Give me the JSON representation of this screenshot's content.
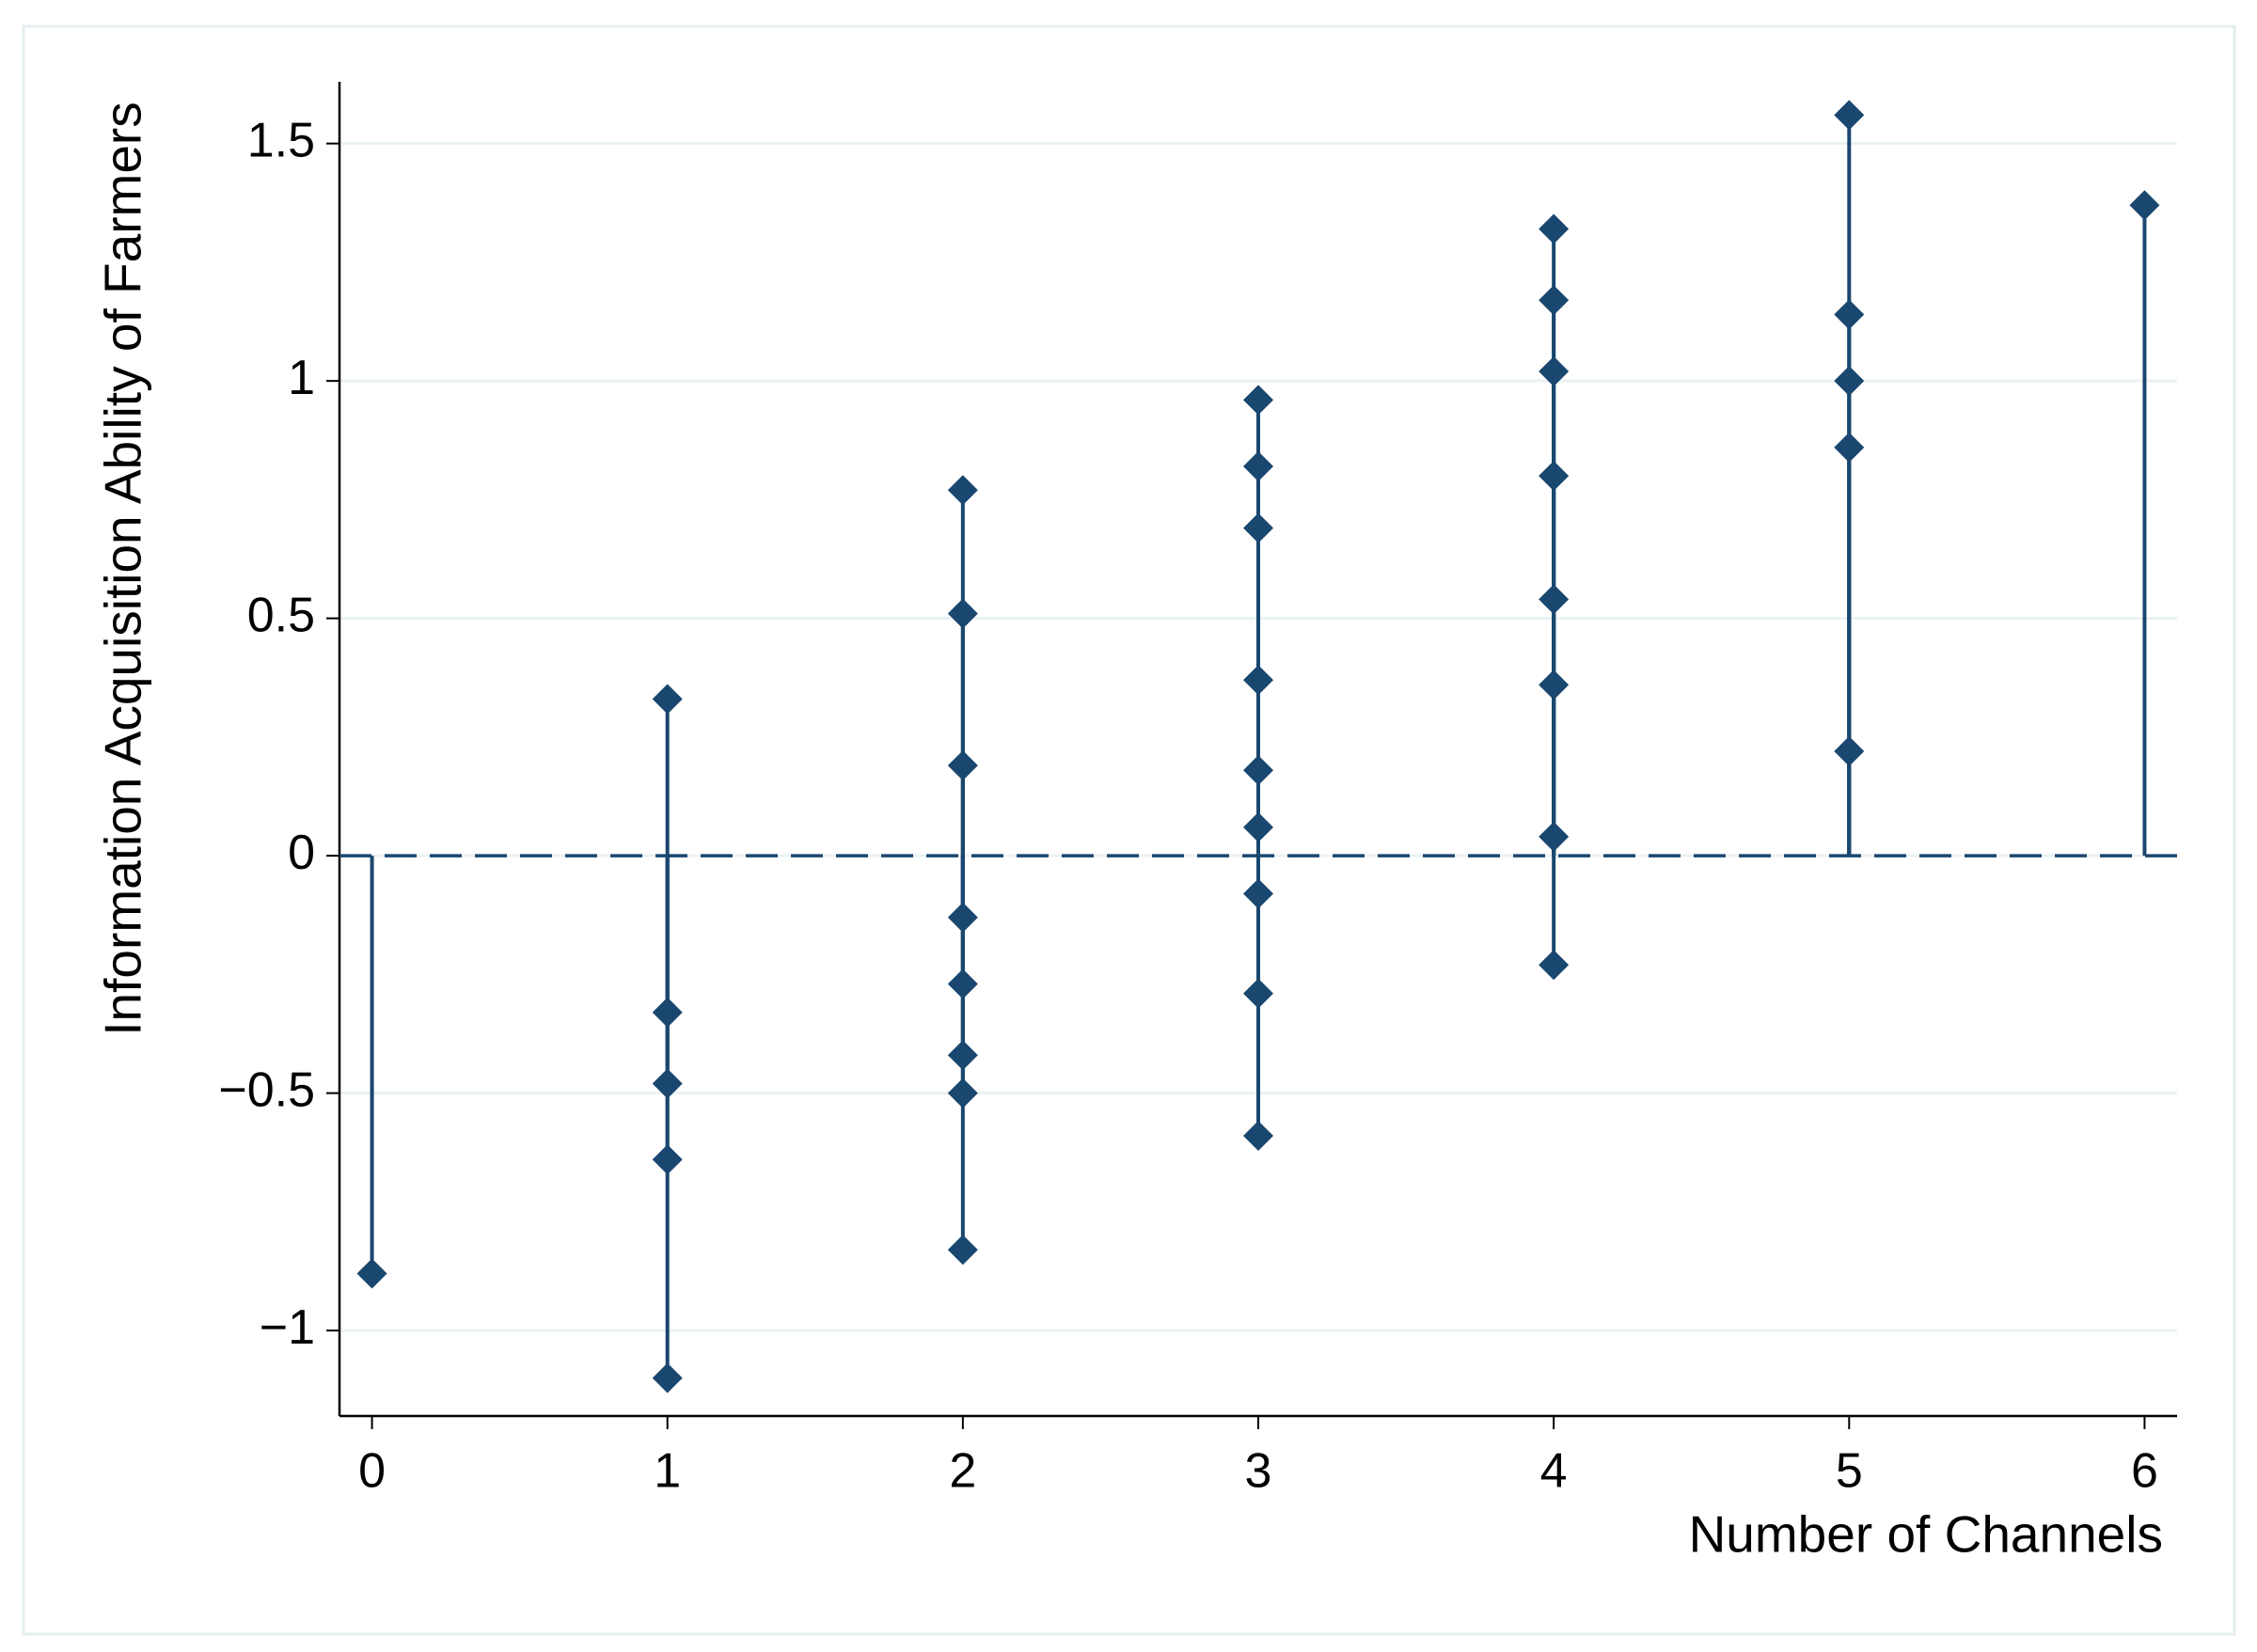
{
  "chart_data": {
    "type": "dropline",
    "x_label": "Number of Channels",
    "y_label": "Information Acquisition Ability of Farmers",
    "x": [
      0,
      1,
      1,
      1,
      1,
      1,
      2,
      2,
      2,
      2,
      2,
      2,
      2,
      2,
      3,
      3,
      3,
      3,
      3,
      3,
      3,
      3,
      3,
      4,
      4,
      4,
      4,
      4,
      4,
      4,
      4,
      5,
      5,
      5,
      5,
      5,
      6
    ],
    "y": [
      -0.88,
      0.33,
      -0.33,
      -0.48,
      -0.64,
      -1.1,
      0.77,
      0.51,
      0.19,
      -0.13,
      -0.27,
      -0.42,
      -0.5,
      -0.83,
      0.96,
      0.82,
      0.69,
      0.37,
      0.18,
      0.06,
      -0.08,
      -0.29,
      -0.59,
      1.32,
      1.17,
      1.02,
      0.8,
      0.54,
      0.36,
      0.04,
      -0.23,
      1.56,
      1.14,
      1.0,
      0.86,
      0.22,
      1.37
    ],
    "color": "#1a476f",
    "base": 0,
    "xlim": [
      -0.11,
      6.11
    ],
    "ylim": [
      -1.18,
      1.63
    ],
    "xticks": [
      0,
      1,
      2,
      3,
      4,
      5,
      6
    ],
    "yticks": [
      {
        "value": -1,
        "label": "−1"
      },
      {
        "value": -0.5,
        "label": "−0.5"
      },
      0,
      0.5,
      1,
      1.5
    ],
    "grid": true
  }
}
